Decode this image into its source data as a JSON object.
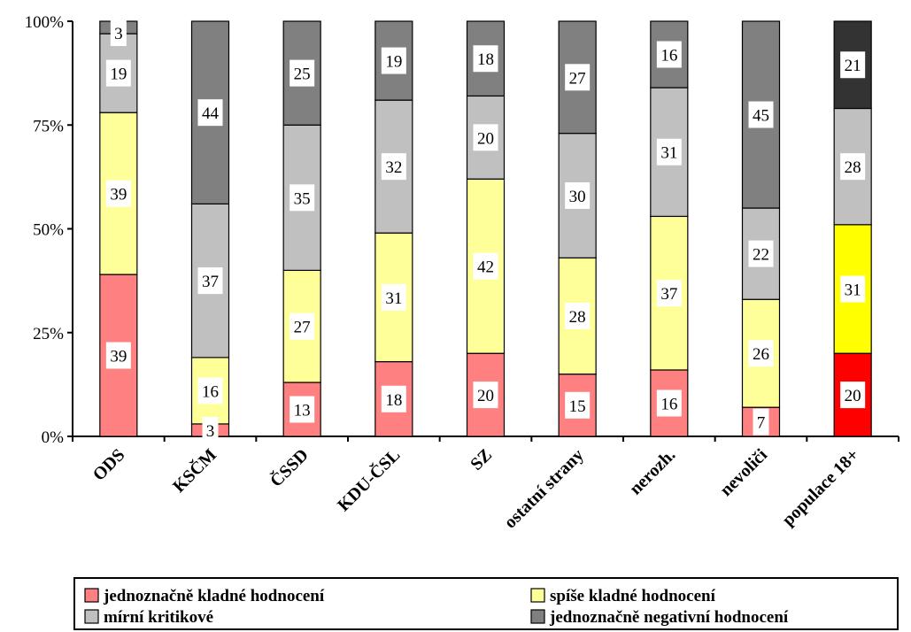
{
  "chart_data": {
    "type": "bar",
    "stacked": true,
    "percent": true,
    "title": "",
    "xlabel": "",
    "ylabel": "",
    "ylim": [
      0,
      100
    ],
    "yticks": [
      0,
      25,
      50,
      75,
      100
    ],
    "ytick_labels": [
      "0%",
      "25%",
      "50%",
      "75%",
      "100%"
    ],
    "grid": false,
    "legend_position": "bottom",
    "categories": [
      "ODS",
      "KSČM",
      "ČSSD",
      "KDU-ČSL",
      "SZ",
      "ostatní strany",
      "nerozh.",
      "nevoliči",
      "populace 18+"
    ],
    "series": [
      {
        "name": "jednoznačně kladné hodnocení",
        "values": [
          39,
          3,
          13,
          18,
          20,
          15,
          16,
          7,
          20
        ],
        "color": "#ff8080",
        "highlight_color": "#ff0000"
      },
      {
        "name": "spíše kladné hodnocení",
        "values": [
          39,
          16,
          27,
          31,
          42,
          28,
          37,
          26,
          31
        ],
        "color": "#ffff99",
        "highlight_color": "#ffff00"
      },
      {
        "name": "mírní kritikové",
        "values": [
          19,
          37,
          35,
          32,
          20,
          30,
          31,
          22,
          28
        ],
        "color": "#c0c0c0",
        "highlight_color": "#c0c0c0"
      },
      {
        "name": "jednoznačně negativní hodnocení",
        "values": [
          3,
          44,
          25,
          19,
          18,
          27,
          16,
          45,
          21
        ],
        "color": "#808080",
        "highlight_color": "#333333"
      }
    ],
    "highlight_category": "populace 18+"
  }
}
